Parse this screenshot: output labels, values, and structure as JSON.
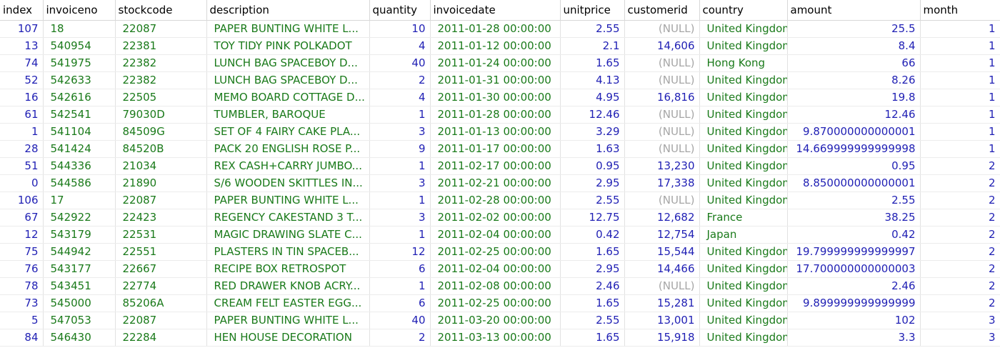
{
  "columns": [
    {
      "name": "index",
      "type": "num"
    },
    {
      "name": "invoiceno",
      "type": "str"
    },
    {
      "name": "stockcode",
      "type": "str"
    },
    {
      "name": "description",
      "type": "str"
    },
    {
      "name": "quantity",
      "type": "num"
    },
    {
      "name": "invoicedate",
      "type": "str"
    },
    {
      "name": "unitprice",
      "type": "num"
    },
    {
      "name": "customerid",
      "type": "num"
    },
    {
      "name": "country",
      "type": "str"
    },
    {
      "name": "amount",
      "type": "num"
    },
    {
      "name": "month",
      "type": "num"
    }
  ],
  "null_text": "(NULL)",
  "rows": [
    [
      "107",
      "18",
      "22087",
      "PAPER BUNTING WHITE L...",
      "10",
      "2011-01-28 00:00:00",
      "2.55",
      null,
      "United Kingdom",
      "25.5",
      "1"
    ],
    [
      "13",
      "540954",
      "22381",
      "TOY TIDY PINK POLKADOT",
      "4",
      "2011-01-12 00:00:00",
      "2.1",
      "14,606",
      "United Kingdom",
      "8.4",
      "1"
    ],
    [
      "74",
      "541975",
      "22382",
      "LUNCH BAG SPACEBOY D...",
      "40",
      "2011-01-24 00:00:00",
      "1.65",
      null,
      "Hong Kong",
      "66",
      "1"
    ],
    [
      "52",
      "542633",
      "22382",
      "LUNCH BAG SPACEBOY D...",
      "2",
      "2011-01-31 00:00:00",
      "4.13",
      null,
      "United Kingdom",
      "8.26",
      "1"
    ],
    [
      "16",
      "542616",
      "22505",
      "MEMO BOARD COTTAGE D...",
      "4",
      "2011-01-30 00:00:00",
      "4.95",
      "16,816",
      "United Kingdom",
      "19.8",
      "1"
    ],
    [
      "61",
      "542541",
      "79030D",
      "TUMBLER, BAROQUE",
      "1",
      "2011-01-28 00:00:00",
      "12.46",
      null,
      "United Kingdom",
      "12.46",
      "1"
    ],
    [
      "1",
      "541104",
      "84509G",
      "SET OF 4 FAIRY CAKE PLA...",
      "3",
      "2011-01-13 00:00:00",
      "3.29",
      null,
      "United Kingdom",
      "9.870000000000001",
      "1"
    ],
    [
      "28",
      "541424",
      "84520B",
      "PACK 20 ENGLISH ROSE P...",
      "9",
      "2011-01-17 00:00:00",
      "1.63",
      null,
      "United Kingdom",
      "14.669999999999998",
      "1"
    ],
    [
      "51",
      "544336",
      "21034",
      "REX CASH+CARRY JUMBO...",
      "1",
      "2011-02-17 00:00:00",
      "0.95",
      "13,230",
      "United Kingdom",
      "0.95",
      "2"
    ],
    [
      "0",
      "544586",
      "21890",
      "S/6 WOODEN SKITTLES IN...",
      "3",
      "2011-02-21 00:00:00",
      "2.95",
      "17,338",
      "United Kingdom",
      "8.850000000000001",
      "2"
    ],
    [
      "106",
      "17",
      "22087",
      "PAPER BUNTING WHITE L...",
      "1",
      "2011-02-28 00:00:00",
      "2.55",
      null,
      "United Kingdom",
      "2.55",
      "2"
    ],
    [
      "67",
      "542922",
      "22423",
      "REGENCY CAKESTAND 3 T...",
      "3",
      "2011-02-02 00:00:00",
      "12.75",
      "12,682",
      "France",
      "38.25",
      "2"
    ],
    [
      "12",
      "543179",
      "22531",
      "MAGIC DRAWING SLATE C...",
      "1",
      "2011-02-04 00:00:00",
      "0.42",
      "12,754",
      "Japan",
      "0.42",
      "2"
    ],
    [
      "75",
      "544942",
      "22551",
      "PLASTERS IN TIN SPACEB...",
      "12",
      "2011-02-25 00:00:00",
      "1.65",
      "15,544",
      "United Kingdom",
      "19.799999999999997",
      "2"
    ],
    [
      "76",
      "543177",
      "22667",
      "RECIPE BOX RETROSPOT",
      "6",
      "2011-02-04 00:00:00",
      "2.95",
      "14,466",
      "United Kingdom",
      "17.700000000000003",
      "2"
    ],
    [
      "78",
      "543451",
      "22774",
      "RED DRAWER KNOB ACRY...",
      "1",
      "2011-02-08 00:00:00",
      "2.46",
      null,
      "United Kingdom",
      "2.46",
      "2"
    ],
    [
      "73",
      "545000",
      "85206A",
      "CREAM FELT EASTER EGG...",
      "6",
      "2011-02-25 00:00:00",
      "1.65",
      "15,281",
      "United Kingdom",
      "9.899999999999999",
      "2"
    ],
    [
      "5",
      "547053",
      "22087",
      "PAPER BUNTING WHITE L...",
      "40",
      "2011-03-20 00:00:00",
      "2.55",
      "13,001",
      "United Kingdom",
      "102",
      "3"
    ],
    [
      "84",
      "546430",
      "22284",
      "HEN HOUSE DECORATION",
      "2",
      "2011-03-13 00:00:00",
      "1.65",
      "15,918",
      "United Kingdom",
      "3.3",
      "3"
    ]
  ]
}
